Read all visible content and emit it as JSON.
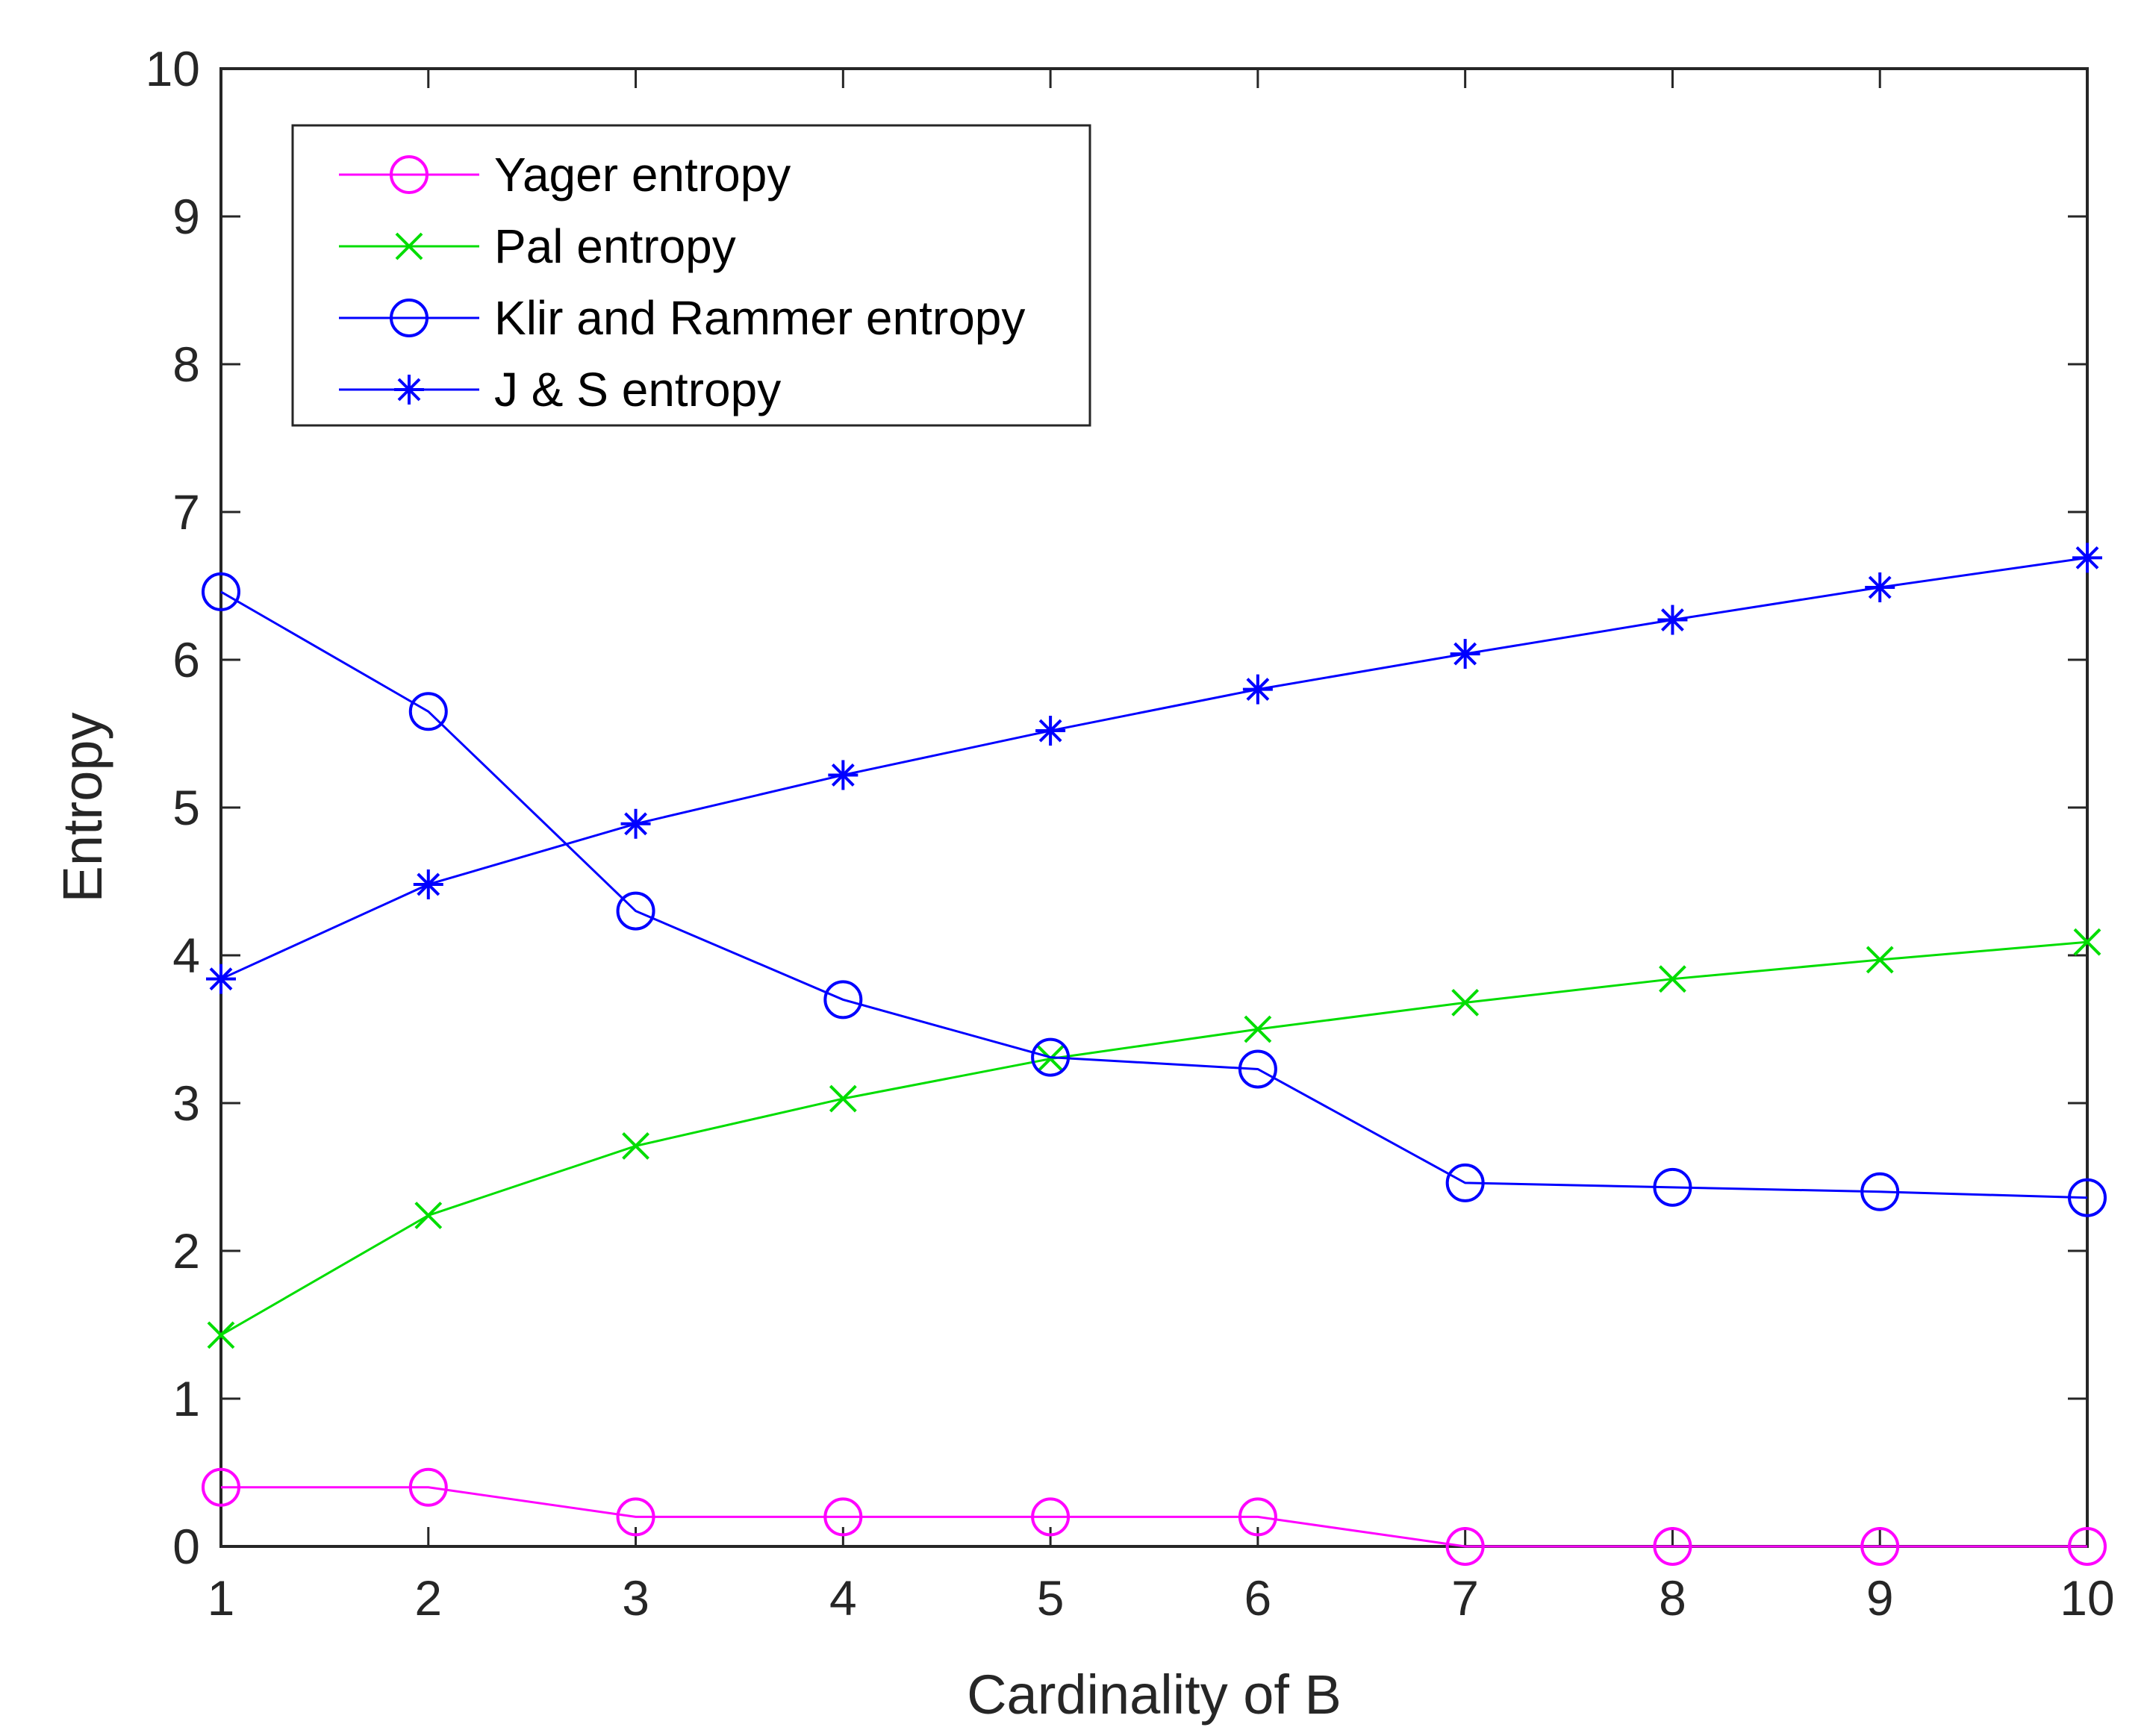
{
  "chart_data": {
    "type": "line",
    "title": "",
    "xlabel": "Cardinality of B",
    "ylabel": "Entropy",
    "xlim": [
      1,
      10
    ],
    "ylim": [
      0,
      10
    ],
    "xticks": [
      1,
      2,
      3,
      4,
      5,
      6,
      7,
      8,
      9,
      10
    ],
    "yticks": [
      0,
      1,
      2,
      3,
      4,
      5,
      6,
      7,
      8,
      9,
      10
    ],
    "grid": false,
    "legend_position": "top-left",
    "x": [
      1,
      2,
      3,
      4,
      5,
      6,
      7,
      8,
      9,
      10
    ],
    "series": [
      {
        "name": "Yager entropy",
        "marker": "circle",
        "color": "#ff00ff",
        "values": [
          0.4,
          0.4,
          0.2,
          0.2,
          0.2,
          0.2,
          0.0,
          0.0,
          0.0,
          0.0
        ]
      },
      {
        "name": "Pal entropy",
        "marker": "x",
        "color": "#00dd00",
        "values": [
          1.43,
          2.24,
          2.71,
          3.03,
          3.3,
          3.5,
          3.68,
          3.84,
          3.97,
          4.09
        ]
      },
      {
        "name": "Klir and Rammer entropy",
        "marker": "circle",
        "color": "#0000ff",
        "values": [
          6.46,
          5.65,
          4.3,
          3.7,
          3.31,
          3.23,
          2.46,
          2.43,
          2.4,
          2.36
        ]
      },
      {
        "name": "J & S entropy",
        "marker": "asterisk",
        "color": "#0000ff",
        "values": [
          3.84,
          4.48,
          4.89,
          5.22,
          5.52,
          5.8,
          6.04,
          6.27,
          6.49,
          6.69
        ]
      }
    ]
  }
}
